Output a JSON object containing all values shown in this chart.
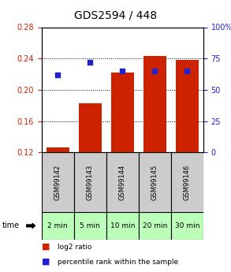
{
  "title": "GDS2594 / 448",
  "samples": [
    "GSM99142",
    "GSM99143",
    "GSM99144",
    "GSM99145",
    "GSM99146"
  ],
  "time_labels": [
    "2 min",
    "5 min",
    "10 min",
    "20 min",
    "30 min"
  ],
  "log2_ratio": [
    0.126,
    0.183,
    0.222,
    0.243,
    0.238
  ],
  "percentile_rank": [
    62,
    72,
    65,
    65,
    65
  ],
  "bar_bottom": 0.12,
  "ylim_left": [
    0.12,
    0.28
  ],
  "ylim_right": [
    0,
    100
  ],
  "yticks_left": [
    0.12,
    0.16,
    0.2,
    0.24,
    0.28
  ],
  "yticks_right": [
    0,
    25,
    50,
    75,
    100
  ],
  "bar_color": "#cc2200",
  "dot_color": "#2222cc",
  "bg_color_gsm": "#cccccc",
  "bg_color_time": "#bbffbb",
  "title_fontsize": 10,
  "tick_fontsize": 7,
  "legend_fontsize": 6.5
}
